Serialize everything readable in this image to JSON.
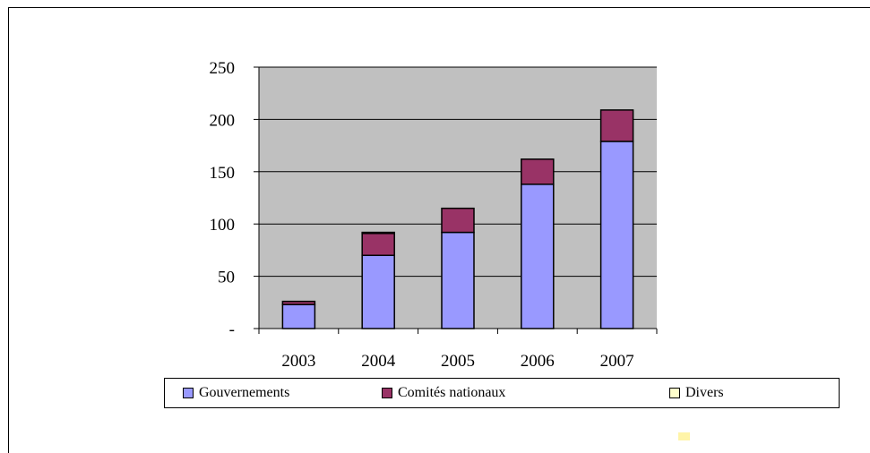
{
  "chart_data": {
    "type": "bar",
    "stacked": true,
    "categories": [
      "2003",
      "2004",
      "2005",
      "2006",
      "2007"
    ],
    "series": [
      {
        "name": "Gouvernements",
        "color": "#9999ff",
        "values": [
          23,
          70,
          92,
          138,
          179
        ]
      },
      {
        "name": "Comités nationaux",
        "color": "#993366",
        "values": [
          3,
          21,
          23,
          24,
          30
        ]
      },
      {
        "name": "Divers",
        "color": "#ffffcc",
        "values": [
          0,
          1,
          0,
          0,
          0
        ]
      }
    ],
    "ylim": [
      0,
      250
    ],
    "yticks": [
      {
        "value": 0,
        "label": "-"
      },
      {
        "value": 50,
        "label": "50"
      },
      {
        "value": 100,
        "label": "100"
      },
      {
        "value": 150,
        "label": "150"
      },
      {
        "value": 200,
        "label": "200"
      },
      {
        "value": 250,
        "label": "250"
      }
    ],
    "plot_background": "#c0c0c0",
    "grid": true,
    "legend_position": "bottom"
  }
}
